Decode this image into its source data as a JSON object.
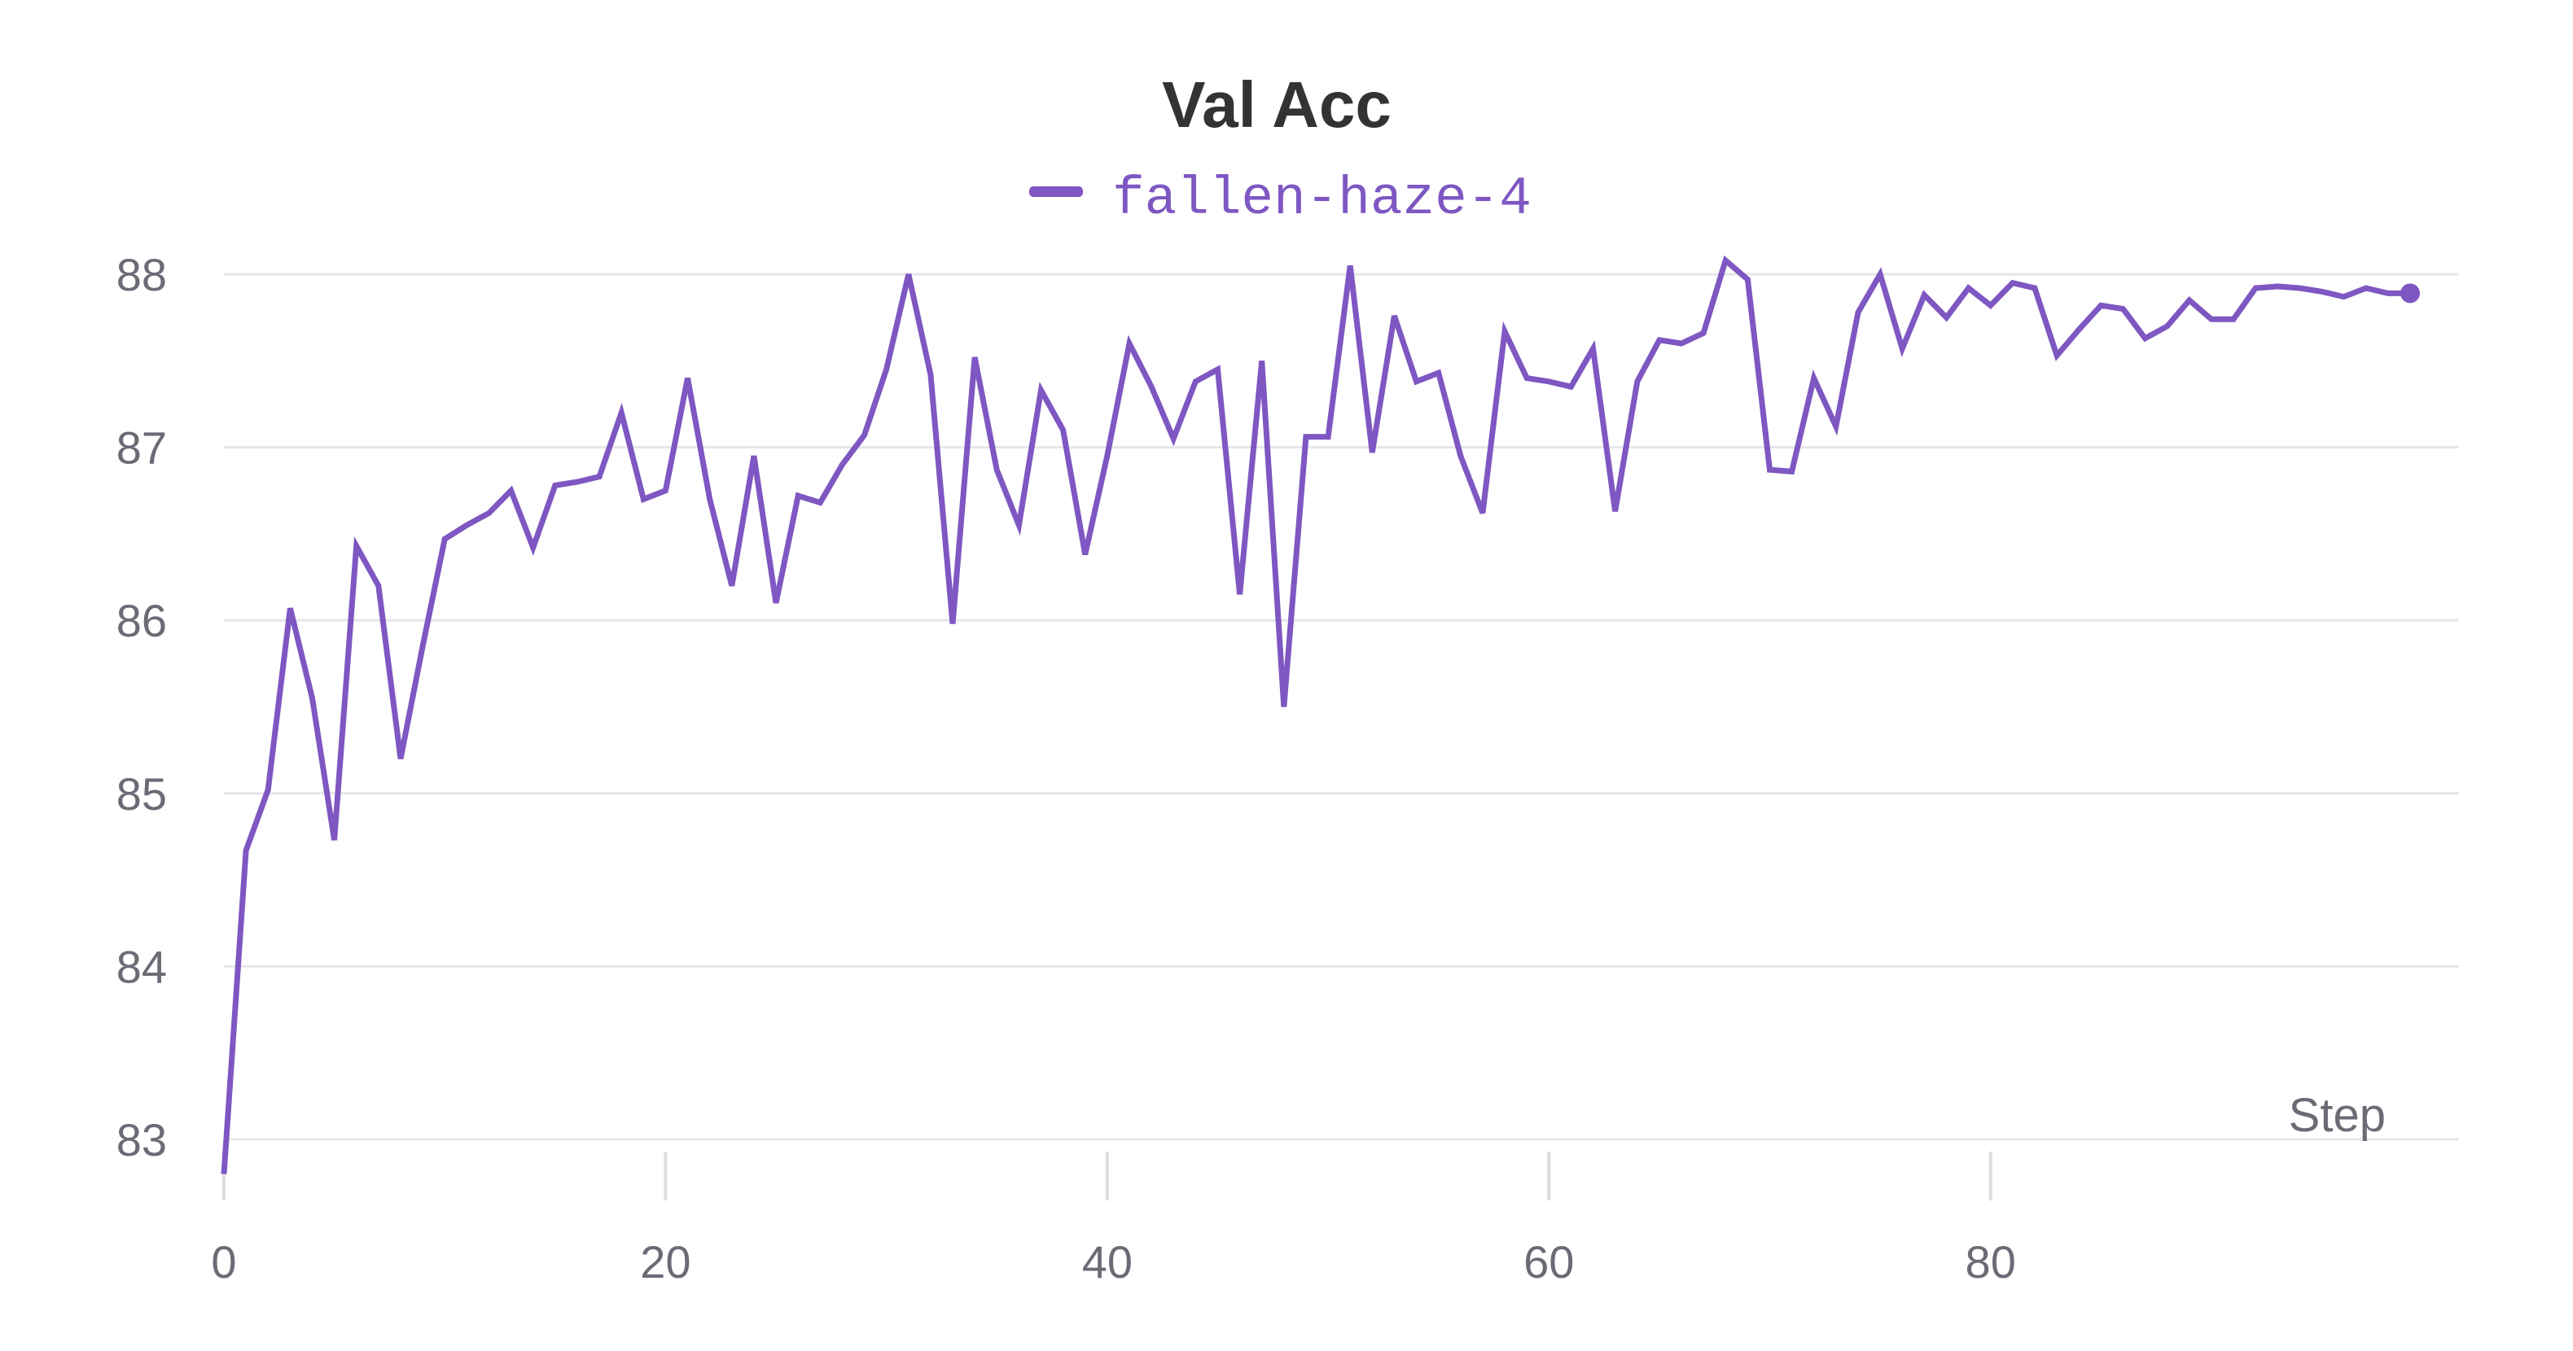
{
  "chart_data": {
    "type": "line",
    "title": "Val Acc",
    "xlabel": "Step",
    "ylabel": "",
    "xlim": [
      0,
      99
    ],
    "ylim": [
      82.8,
      88.1
    ],
    "x_ticks": [
      0,
      20,
      40,
      60,
      80
    ],
    "y_ticks": [
      83,
      84,
      85,
      86,
      87,
      88
    ],
    "grid": true,
    "legend_position": "top-center",
    "series": [
      {
        "name": "fallen-haze-4",
        "color": "#7e57c2",
        "x": [
          0,
          1,
          2,
          3,
          4,
          5,
          6,
          7,
          8,
          9,
          10,
          11,
          12,
          13,
          14,
          15,
          16,
          17,
          18,
          19,
          20,
          21,
          22,
          23,
          24,
          25,
          26,
          27,
          28,
          29,
          30,
          31,
          32,
          33,
          34,
          35,
          36,
          37,
          38,
          39,
          40,
          41,
          42,
          43,
          44,
          45,
          46,
          47,
          48,
          49,
          50,
          51,
          52,
          53,
          54,
          55,
          56,
          57,
          58,
          59,
          60,
          61,
          62,
          63,
          64,
          65,
          66,
          67,
          68,
          69,
          70,
          71,
          72,
          73,
          74,
          75,
          76,
          77,
          78,
          79,
          80,
          81,
          82,
          83,
          84,
          85,
          86,
          87,
          88,
          89,
          90,
          91,
          92,
          93,
          94,
          95,
          96,
          97,
          98,
          99
        ],
        "values": [
          82.8,
          84.67,
          85.02,
          86.07,
          85.55,
          84.73,
          86.43,
          86.2,
          85.2,
          85.85,
          86.47,
          86.55,
          86.62,
          86.75,
          86.42,
          86.78,
          86.8,
          86.83,
          87.2,
          86.7,
          86.75,
          87.4,
          86.7,
          86.2,
          86.95,
          86.1,
          86.72,
          86.68,
          86.9,
          87.07,
          87.45,
          88.0,
          87.42,
          85.98,
          87.52,
          86.87,
          86.55,
          87.33,
          87.1,
          86.38,
          86.95,
          87.6,
          87.35,
          87.05,
          87.38,
          87.45,
          86.15,
          87.5,
          85.5,
          87.06,
          87.06,
          88.05,
          86.97,
          87.76,
          87.38,
          87.43,
          86.95,
          86.62,
          87.67,
          87.4,
          87.38,
          87.35,
          87.57,
          86.63,
          87.38,
          87.62,
          87.6,
          87.66,
          88.08,
          87.97,
          86.87,
          86.86,
          87.4,
          87.12,
          87.78,
          88.0,
          87.57,
          87.88,
          87.75,
          87.92,
          87.82,
          87.95,
          87.92,
          87.53,
          87.68,
          87.82,
          87.8,
          87.63,
          87.7,
          87.85,
          87.74,
          87.74,
          87.92,
          87.93,
          87.92,
          87.9,
          87.87,
          87.92,
          87.89,
          87.89
        ]
      }
    ]
  }
}
